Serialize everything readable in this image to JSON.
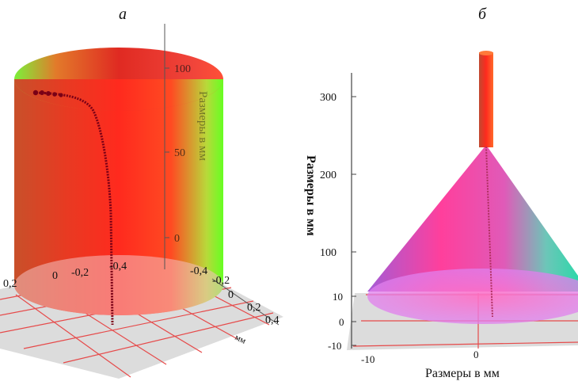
{
  "panel_a": {
    "letter": "а",
    "z_ticks": [
      "100",
      "50",
      "0"
    ],
    "z_axis_title": "Размеры в мм",
    "front_axis_ticks": [
      "0,2",
      "0",
      "-0,2",
      "-0,4"
    ],
    "right_axis_ticks": [
      "-0,2",
      "0",
      "0,2",
      "0,4"
    ],
    "corner_label": "-0,4",
    "side_label": "мм"
  },
  "panel_b": {
    "letter": "б",
    "y_ticks": [
      "300",
      "200",
      "100"
    ],
    "y_axis_title": "Размеры в мм",
    "base_ticks": [
      "10",
      "0",
      "-10"
    ],
    "x_ticks": [
      "-10",
      "0"
    ],
    "x_axis_title": "Размеры в мм"
  },
  "colors": {
    "cylinder_red": "#ff2a1e",
    "cylinder_green": "#66ff22",
    "cone_magenta": "#ff4fb4",
    "cone_teal": "#2fd7aa",
    "grid_red": "#e64a4a",
    "trajectory": "#7a0016"
  }
}
